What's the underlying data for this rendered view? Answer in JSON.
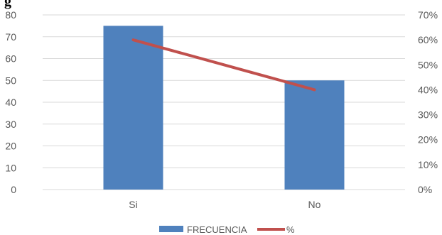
{
  "header": {
    "cutoff_text": "g"
  },
  "chart_data": {
    "type": "bar",
    "categories": [
      "Si",
      "No"
    ],
    "series": [
      {
        "name": "FRECUENCIA",
        "type": "bar",
        "axis": "left",
        "values": [
          75,
          50
        ],
        "color": "#4f81bd"
      },
      {
        "name": "%",
        "type": "line",
        "axis": "right",
        "values": [
          0.6,
          0.4
        ],
        "color": "#c0504d"
      }
    ],
    "y_left": {
      "ylim": [
        0,
        80
      ],
      "ticks": [
        "0",
        "10",
        "20",
        "30",
        "40",
        "50",
        "60",
        "70",
        "80"
      ]
    },
    "y_right": {
      "ylim": [
        0,
        0.7
      ],
      "ticks": [
        "0%",
        "10%",
        "20%",
        "30%",
        "40%",
        "50%",
        "60%",
        "70%"
      ]
    },
    "grid": true,
    "legend": {
      "position": "bottom"
    }
  }
}
